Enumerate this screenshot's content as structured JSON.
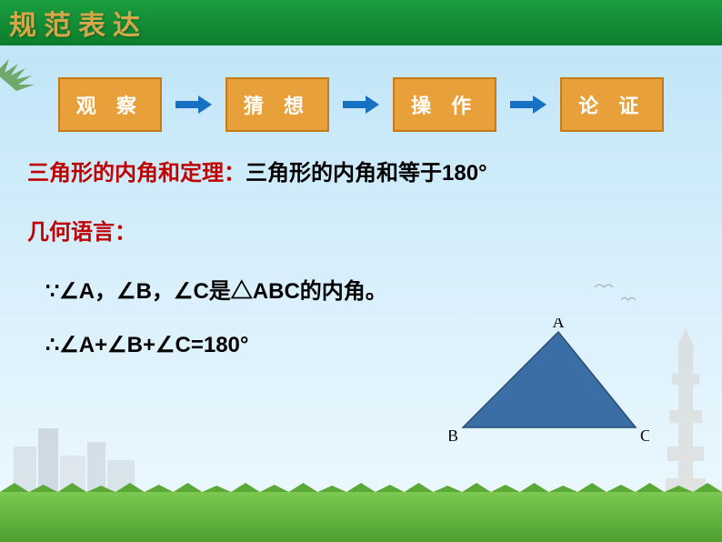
{
  "header": {
    "title": "规范表达"
  },
  "steps": [
    {
      "label": "观 察"
    },
    {
      "label": "猜 想"
    },
    {
      "label": "操 作"
    },
    {
      "label": "论 证"
    }
  ],
  "theorem": {
    "label": "三角形的内角和定理：",
    "text": "三角形的内角和等于180°"
  },
  "geom_lang_label": "几何语言：",
  "math": {
    "line1": "∵∠A，∠B，∠C是△ABC的内角。",
    "line2": "∴∠A+∠B+∠C=180°"
  },
  "triangle": {
    "vertices": {
      "A": "A",
      "B": "B",
      "C": "C"
    },
    "points": {
      "A": [
        120,
        15
      ],
      "B": [
        15,
        120
      ],
      "C": [
        205,
        120
      ]
    },
    "fill_color": "#3b6ea5",
    "stroke_color": "#2a4d73",
    "label_font": "18px SimSun"
  },
  "colors": {
    "header_text": "#d4a84a",
    "step_bg": "#e8a13a",
    "step_border": "#c77a1a",
    "arrow": "#1670c4",
    "accent_red": "#c00000",
    "text_black": "#000000"
  }
}
